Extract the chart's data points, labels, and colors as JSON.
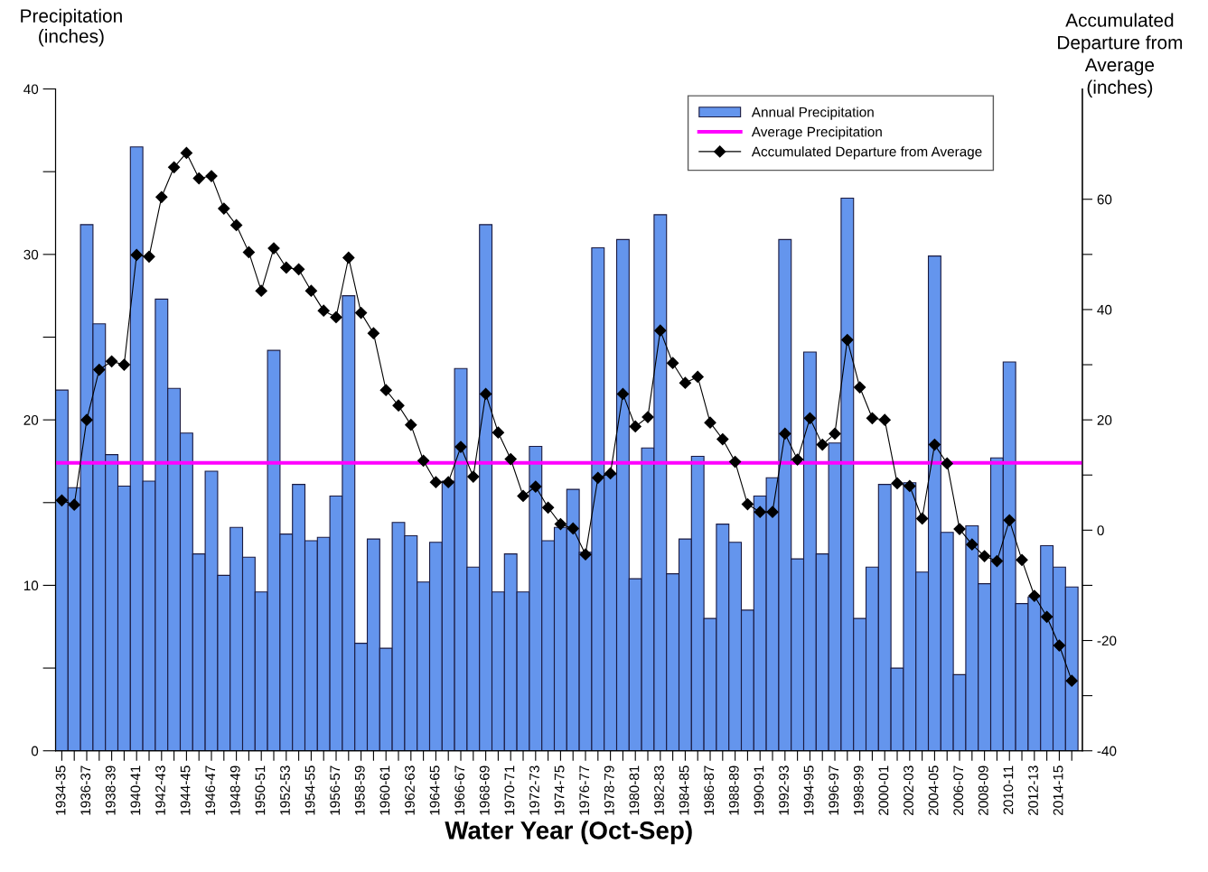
{
  "chart_data": {
    "type": "bar",
    "xlabel": "Water Year (Oct-Sep)",
    "ylabel": "Precipitation\n(inches)",
    "y2label": "Accumulated\nDeparture from\nAverage\n(inches)",
    "categories": [
      "1934-35",
      null,
      "1936-37",
      null,
      "1938-39",
      null,
      "1940-41",
      null,
      "1942-43",
      null,
      "1944-45",
      null,
      "1946-47",
      null,
      "1948-49",
      null,
      "1950-51",
      null,
      "1952-53",
      null,
      "1954-55",
      null,
      "1956-57",
      null,
      "1958-59",
      null,
      "1960-61",
      null,
      "1962-63",
      null,
      "1964-65",
      null,
      "1966-67",
      null,
      "1968-69",
      null,
      "1970-71",
      null,
      "1972-73",
      null,
      "1974-75",
      null,
      "1976-77",
      null,
      "1978-79",
      null,
      "1980-81",
      null,
      "1982-83",
      null,
      "1984-85",
      null,
      "1986-87",
      null,
      "1988-89",
      null,
      "1990-91",
      null,
      "1992-93",
      null,
      "1994-95",
      null,
      "1996-97",
      null,
      "1998-99",
      null,
      "2000-01",
      null,
      "2002-03",
      null,
      "2004-05",
      null,
      "2006-07",
      null,
      "2008-09",
      null,
      "2010-11",
      null,
      "2012-13",
      null,
      "2014-15",
      null
    ],
    "series": [
      {
        "name": "Annual Precipitation",
        "color": "#6495ed",
        "values": [
          21.8,
          15.9,
          31.8,
          25.8,
          17.9,
          16.0,
          36.5,
          16.3,
          27.3,
          21.9,
          19.2,
          11.9,
          16.9,
          10.6,
          13.5,
          11.7,
          9.6,
          24.2,
          13.1,
          16.1,
          12.7,
          12.9,
          15.4,
          27.5,
          6.5,
          12.8,
          6.2,
          13.8,
          13.0,
          10.2,
          12.6,
          16.3,
          23.1,
          11.1,
          31.8,
          9.6,
          11.9,
          9.6,
          18.4,
          12.7,
          13.5,
          15.8,
          12.0,
          30.4,
          16.7,
          30.9,
          10.4,
          18.3,
          32.4,
          10.7,
          12.8,
          17.8,
          8.0,
          13.7,
          12.6,
          8.5,
          15.4,
          16.5,
          30.9,
          11.6,
          24.1,
          11.9,
          18.6,
          33.4,
          8.0,
          11.1,
          16.1,
          5.0,
          16.2,
          10.8,
          29.9,
          13.2,
          4.6,
          13.6,
          10.1,
          17.7,
          23.5,
          8.9,
          9.3,
          12.4,
          11.1,
          9.9
        ]
      },
      {
        "name": "Accumulated Departure from Average",
        "type": "line",
        "axis": "y2",
        "color": "#000000",
        "marker": "diamond",
        "values": [
          5.4,
          4.6,
          20.0,
          29.1,
          30.6,
          30.0,
          49.9,
          49.6,
          60.4,
          65.8,
          68.4,
          63.8,
          64.2,
          58.3,
          55.3,
          50.4,
          43.4,
          51.1,
          47.6,
          47.3,
          43.4,
          39.8,
          38.6,
          49.4,
          39.4,
          35.7,
          25.4,
          22.6,
          19.1,
          12.6,
          8.7,
          8.7,
          15.1,
          9.7,
          24.7,
          17.7,
          12.9,
          6.2,
          7.9,
          4.1,
          1.1,
          0.3,
          -4.4,
          9.5,
          10.3,
          24.7,
          18.8,
          20.5,
          36.2,
          30.3,
          26.7,
          27.8,
          19.5,
          16.5,
          12.4,
          4.7,
          3.3,
          3.3,
          17.5,
          12.8,
          20.3,
          15.5,
          17.5,
          34.5,
          25.9,
          20.3,
          20.0,
          8.5,
          8.0,
          2.1,
          15.5,
          12.1,
          0.2,
          -2.6,
          -4.7,
          -5.6,
          1.8,
          -5.4,
          -11.9,
          -15.7,
          -20.9,
          -27.3
        ]
      }
    ],
    "ref_lines": [
      {
        "axis": "y",
        "value": 17.4,
        "label": "Average Precipitation",
        "color": "#ff00ff"
      }
    ],
    "ylim": [
      0,
      40
    ],
    "yticks": [
      0,
      {
        "value": 5,
        "label": null
      },
      10,
      {
        "value": 15,
        "label": null
      },
      20,
      {
        "value": 25,
        "label": null
      },
      30,
      {
        "value": 35,
        "label": null
      },
      40
    ],
    "y2lim": [
      -40,
      80
    ],
    "y2ticks": [
      -40,
      {
        "value": -30,
        "label": null
      },
      -20,
      {
        "value": -10,
        "label": null
      },
      0,
      {
        "value": 10,
        "label": null
      },
      20,
      {
        "value": 30,
        "label": null
      },
      40,
      {
        "value": 50,
        "label": null
      },
      60
    ],
    "legend": "top right",
    "grid": false
  }
}
